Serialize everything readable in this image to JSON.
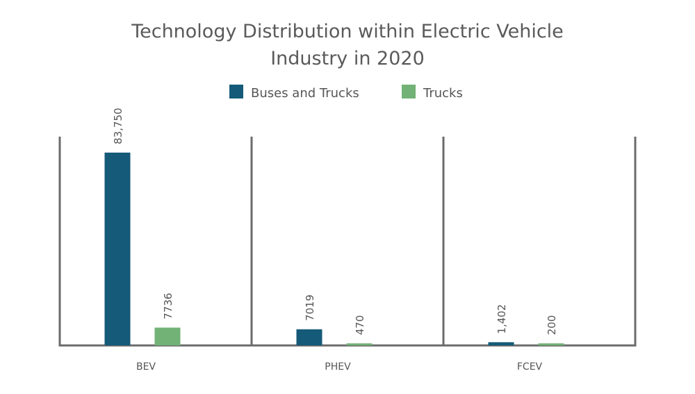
{
  "chart_data": {
    "type": "bar",
    "title": "Technology Distribution within Electric Vehicle Industry in 2020",
    "title_lines": [
      "Technology Distribution within Electric Vehicle",
      "Industry in 2020"
    ],
    "xlabel": "",
    "ylabel": "",
    "categories": [
      "BEV",
      "PHEV",
      "FCEV"
    ],
    "series": [
      {
        "name": "Buses and Trucks",
        "color": "#155a78",
        "values": [
          83750,
          7019,
          1402
        ],
        "labels": [
          "83,750",
          "7019",
          "1,402"
        ]
      },
      {
        "name": "Trucks",
        "color": "#72b276",
        "values": [
          7736,
          470,
          200
        ],
        "labels": [
          "7736",
          "470",
          "200"
        ]
      }
    ],
    "ylim": [
      0,
      90000
    ],
    "grid": false,
    "legend": "top-center",
    "data_labels": "rotated-vertical"
  }
}
